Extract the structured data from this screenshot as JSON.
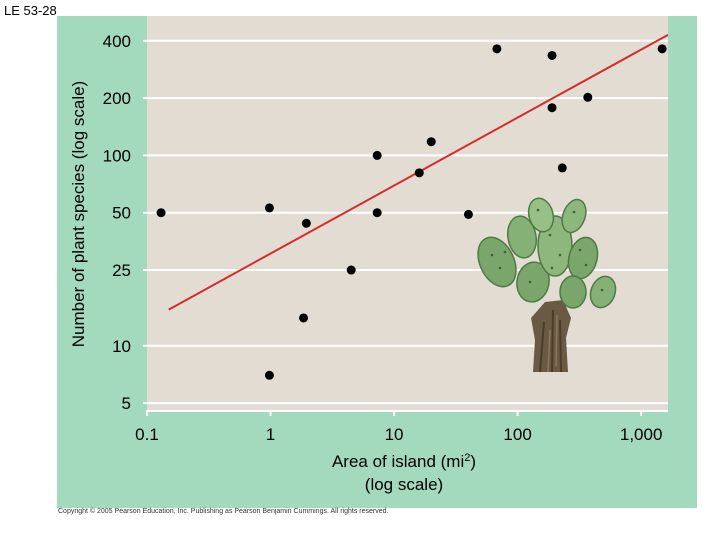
{
  "slide_label": "LE 53-28",
  "copyright": "Copyright © 2005 Pearson Education, Inc. Publishing as Pearson Benjamin Cummings. All rights reserved.",
  "colors": {
    "panel_background": "#a3d9bd",
    "plot_background": "#e3dcd3",
    "gridline": "#ffffff",
    "regression_line": "#d62b2b",
    "points": "#000000"
  },
  "illustration": "cactus-plant-illustration",
  "chart_data": {
    "type": "scatter",
    "title": "",
    "xlabel_lines": [
      "Area of island (mi2)",
      "(log scale)"
    ],
    "ylabel": "Number of plant species (log scale)",
    "x_scale": "log",
    "y_scale": "log",
    "xlim": [
      0.1,
      1650
    ],
    "ylim": [
      4.6,
      540
    ],
    "x_ticks": [
      0.1,
      1,
      10,
      100,
      1000
    ],
    "x_tick_labels": [
      "0.1",
      "1",
      "10",
      "100",
      "1,000"
    ],
    "y_ticks": [
      5,
      10,
      25,
      50,
      100,
      200,
      400
    ],
    "y_tick_labels": [
      "5",
      "10",
      "25",
      "50",
      "100",
      "200",
      "400"
    ],
    "grid": "horizontal",
    "points": [
      {
        "x": 0.13,
        "y": 50
      },
      {
        "x": 0.98,
        "y": 7
      },
      {
        "x": 0.98,
        "y": 53
      },
      {
        "x": 1.85,
        "y": 14
      },
      {
        "x": 1.95,
        "y": 44
      },
      {
        "x": 4.5,
        "y": 25
      },
      {
        "x": 7.3,
        "y": 50
      },
      {
        "x": 7.3,
        "y": 100
      },
      {
        "x": 16,
        "y": 81
      },
      {
        "x": 20,
        "y": 118
      },
      {
        "x": 40,
        "y": 49
      },
      {
        "x": 68,
        "y": 363
      },
      {
        "x": 190,
        "y": 335
      },
      {
        "x": 190,
        "y": 178
      },
      {
        "x": 230,
        "y": 86
      },
      {
        "x": 370,
        "y": 202
      },
      {
        "x": 1480,
        "y": 363
      }
    ],
    "regression_line": {
      "x_start": 0.15,
      "y_start": 15.5,
      "x_end": 1650,
      "y_end": 430
    }
  }
}
